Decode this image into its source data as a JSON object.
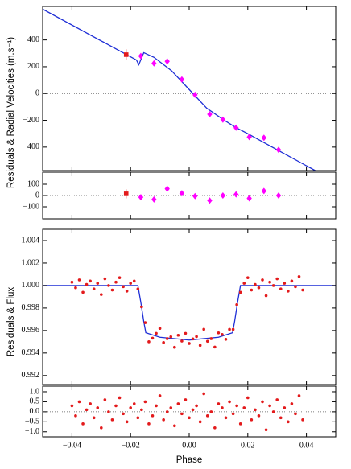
{
  "chart_data": [
    {
      "type": "scatter",
      "ylabel": "Residuals & Radial Velocities (m.s⁻¹)",
      "xlim": [
        -0.05,
        0.05
      ],
      "ylim": [
        -575,
        650
      ],
      "yticks": [
        {
          "value": -400,
          "label": "−400"
        },
        {
          "value": -200,
          "label": "−200"
        },
        0,
        200,
        400
      ],
      "hline": 0,
      "series": [
        {
          "style": "line",
          "color": "#1f2fd6",
          "x": [
            -0.05,
            -0.018,
            -0.0172,
            -0.0155,
            -0.012,
            -0.006,
            0,
            0.006,
            0.012,
            0.016,
            0.02,
            0.03,
            0.043
          ],
          "values": [
            630,
            250,
            215,
            305,
            270,
            170,
            30,
            -110,
            -200,
            -255,
            -300,
            -420,
            -575
          ]
        },
        {
          "marker": "square",
          "color": "#e31a1c",
          "x": [
            -0.0215
          ],
          "values": [
            290
          ],
          "errors": [
            40
          ]
        },
        {
          "marker": "diamond",
          "color": "#ff00ff",
          "x": [
            -0.0165,
            -0.012,
            -0.0075,
            -0.0025,
            0.002,
            0.007,
            0.0115,
            0.016,
            0.0205,
            0.0255,
            0.0305
          ],
          "values": [
            280,
            225,
            240,
            105,
            -10,
            -155,
            -195,
            -255,
            -325,
            -330,
            -420
          ],
          "errors": [
            12,
            12,
            12,
            12,
            12,
            12,
            12,
            12,
            12,
            12,
            12
          ]
        }
      ]
    },
    {
      "type": "scatter",
      "xlim": [
        -0.05,
        0.05
      ],
      "ylim": [
        -207,
        207
      ],
      "yticks": [
        {
          "value": -100,
          "label": "−100"
        },
        0,
        100
      ],
      "hline": 0,
      "series": [
        {
          "marker": "square",
          "color": "#e31a1c",
          "x": [
            -0.0215
          ],
          "values": [
            15
          ],
          "errors": [
            40
          ]
        },
        {
          "marker": "diamond",
          "color": "#ff00ff",
          "x": [
            -0.0165,
            -0.012,
            -0.0075,
            -0.0025,
            0.002,
            0.007,
            0.0115,
            0.016,
            0.0205,
            0.0255,
            0.0305
          ],
          "values": [
            -15,
            -35,
            60,
            20,
            -5,
            -45,
            0,
            10,
            -25,
            40,
            0
          ],
          "errors": [
            12,
            12,
            12,
            12,
            12,
            12,
            12,
            12,
            12,
            12,
            12
          ]
        }
      ]
    },
    {
      "type": "scatter",
      "ylabel": "Residuals & Flux",
      "xlim": [
        -0.05,
        0.05
      ],
      "ylim": [
        0.9912,
        1.005
      ],
      "yticks": [
        0.992,
        0.994,
        0.996,
        0.998,
        {
          "value": 1,
          "label": "1.000"
        },
        1.002,
        1.004
      ],
      "series": [
        {
          "style": "line",
          "color": "#1f2fd6",
          "x": [
            -0.05,
            -0.0175,
            -0.0165,
            -0.0155,
            -0.0148,
            -0.01,
            0,
            0.01,
            0.0148,
            0.0155,
            0.0165,
            0.0175,
            0.05
          ],
          "values": [
            1.0,
            1.0,
            0.9985,
            0.9968,
            0.9958,
            0.9954,
            0.99515,
            0.9954,
            0.9958,
            0.9968,
            0.9985,
            1.0,
            1.0
          ]
        },
        {
          "marker": "circle",
          "color": "#e31a1c",
          "x": [
            -0.04,
            -0.03875,
            -0.0375,
            -0.03625,
            -0.035,
            -0.03375,
            -0.0325,
            -0.03125,
            -0.03,
            -0.02875,
            -0.0275,
            -0.02625,
            -0.025,
            -0.02375,
            -0.0225,
            -0.02125,
            -0.02,
            -0.01875,
            -0.0175,
            -0.01625,
            -0.015,
            -0.01375,
            -0.0125,
            -0.01125,
            -0.01,
            -0.00875,
            -0.0075,
            -0.00625,
            -0.005,
            -0.00375,
            -0.0025,
            -0.00125,
            0,
            0.00125,
            0.0025,
            0.00375,
            0.005,
            0.00625,
            0.0075,
            0.00875,
            0.01,
            0.01125,
            0.0125,
            0.01375,
            0.015,
            0.01625,
            0.0175,
            0.01875,
            0.02,
            0.02125,
            0.0225,
            0.02375,
            0.025,
            0.02625,
            0.0275,
            0.02875,
            0.03,
            0.03125,
            0.0325,
            0.03375,
            0.035,
            0.03625,
            0.0375,
            0.03875
          ],
          "values": [
            1.0003,
            0.9998,
            1.0005,
            0.9994,
            1.0001,
            1.0004,
            0.9997,
            1.0002,
            0.9992,
            1.0006,
            1.0,
            0.9996,
            1.0003,
            1.0007,
            0.9999,
            0.9995,
            1.0002,
            1.0004,
            0.9997,
            0.9981,
            0.9967,
            0.995,
            0.99532,
            0.99575,
            0.99619,
            0.99493,
            0.99528,
            0.99544,
            0.99451,
            0.99558,
            0.99506,
            0.99575,
            0.99485,
            0.99525,
            0.99546,
            0.99468,
            0.99611,
            0.99504,
            0.99528,
            0.99453,
            0.99579,
            0.99565,
            0.99522,
            0.9961,
            0.9961,
            0.9983,
            0.9994,
            1.0002,
            1.0007,
            0.9996,
            1.0001,
            0.9998,
            1.0005,
            0.9991,
            1.0003,
            1.0,
            1.0006,
            0.9997,
            1.0002,
            0.9995,
            1.0004,
            0.9999,
            1.0008,
            0.9996
          ]
        }
      ]
    },
    {
      "type": "scatter",
      "xlabel": "Phase",
      "xlim": [
        -0.05,
        0.05
      ],
      "ylim": [
        -1.25,
        1.28
      ],
      "yticks": [
        {
          "value": -1,
          "label": "−1.0"
        },
        {
          "value": -0.5,
          "label": "−0.5"
        },
        {
          "value": 0,
          "label": "0.0"
        },
        0.5,
        {
          "value": 1,
          "label": "1.0"
        }
      ],
      "xticks": [
        {
          "value": -0.04,
          "label": "−0.04"
        },
        {
          "value": -0.02,
          "label": "−0.02"
        },
        {
          "value": 0,
          "label": "0.00"
        },
        0.02,
        0.04
      ],
      "hline": 0,
      "series": [
        {
          "marker": "circle",
          "color": "#e31a1c",
          "x": [
            -0.04,
            -0.03875,
            -0.0375,
            -0.03625,
            -0.035,
            -0.03375,
            -0.0325,
            -0.03125,
            -0.03,
            -0.02875,
            -0.0275,
            -0.02625,
            -0.025,
            -0.02375,
            -0.0225,
            -0.02125,
            -0.02,
            -0.01875,
            -0.0175,
            -0.01625,
            -0.015,
            -0.01375,
            -0.0125,
            -0.01125,
            -0.01,
            -0.00875,
            -0.0075,
            -0.00625,
            -0.005,
            -0.00375,
            -0.0025,
            -0.00125,
            0,
            0.00125,
            0.0025,
            0.00375,
            0.005,
            0.00625,
            0.0075,
            0.00875,
            0.01,
            0.01125,
            0.0125,
            0.01375,
            0.015,
            0.01625,
            0.0175,
            0.01875,
            0.02,
            0.02125,
            0.0225,
            0.02375,
            0.025,
            0.02625,
            0.0275,
            0.02875,
            0.03,
            0.03125,
            0.0325,
            0.03375,
            0.035,
            0.03625,
            0.0375,
            0.03875
          ],
          "values": [
            0.3,
            -0.2,
            0.5,
            -0.6,
            0.1,
            0.4,
            -0.3,
            0.2,
            -0.8,
            0.6,
            0.0,
            -0.4,
            0.3,
            0.7,
            -0.1,
            -0.5,
            0.2,
            0.4,
            -0.3,
            0.1,
            0.5,
            -0.6,
            -0.2,
            0.3,
            0.8,
            -0.4,
            0.0,
            0.2,
            -0.7,
            0.4,
            -0.1,
            0.6,
            -0.3,
            0.1,
            0.3,
            -0.5,
            0.9,
            -0.2,
            0.0,
            -0.8,
            0.4,
            0.2,
            -0.3,
            0.5,
            -0.1,
            0.3,
            -0.6,
            0.2,
            0.7,
            -0.4,
            0.1,
            -0.2,
            0.5,
            -0.9,
            0.3,
            0.0,
            0.6,
            -0.3,
            0.2,
            -0.5,
            0.4,
            -0.1,
            0.8,
            -0.4
          ]
        }
      ]
    }
  ]
}
